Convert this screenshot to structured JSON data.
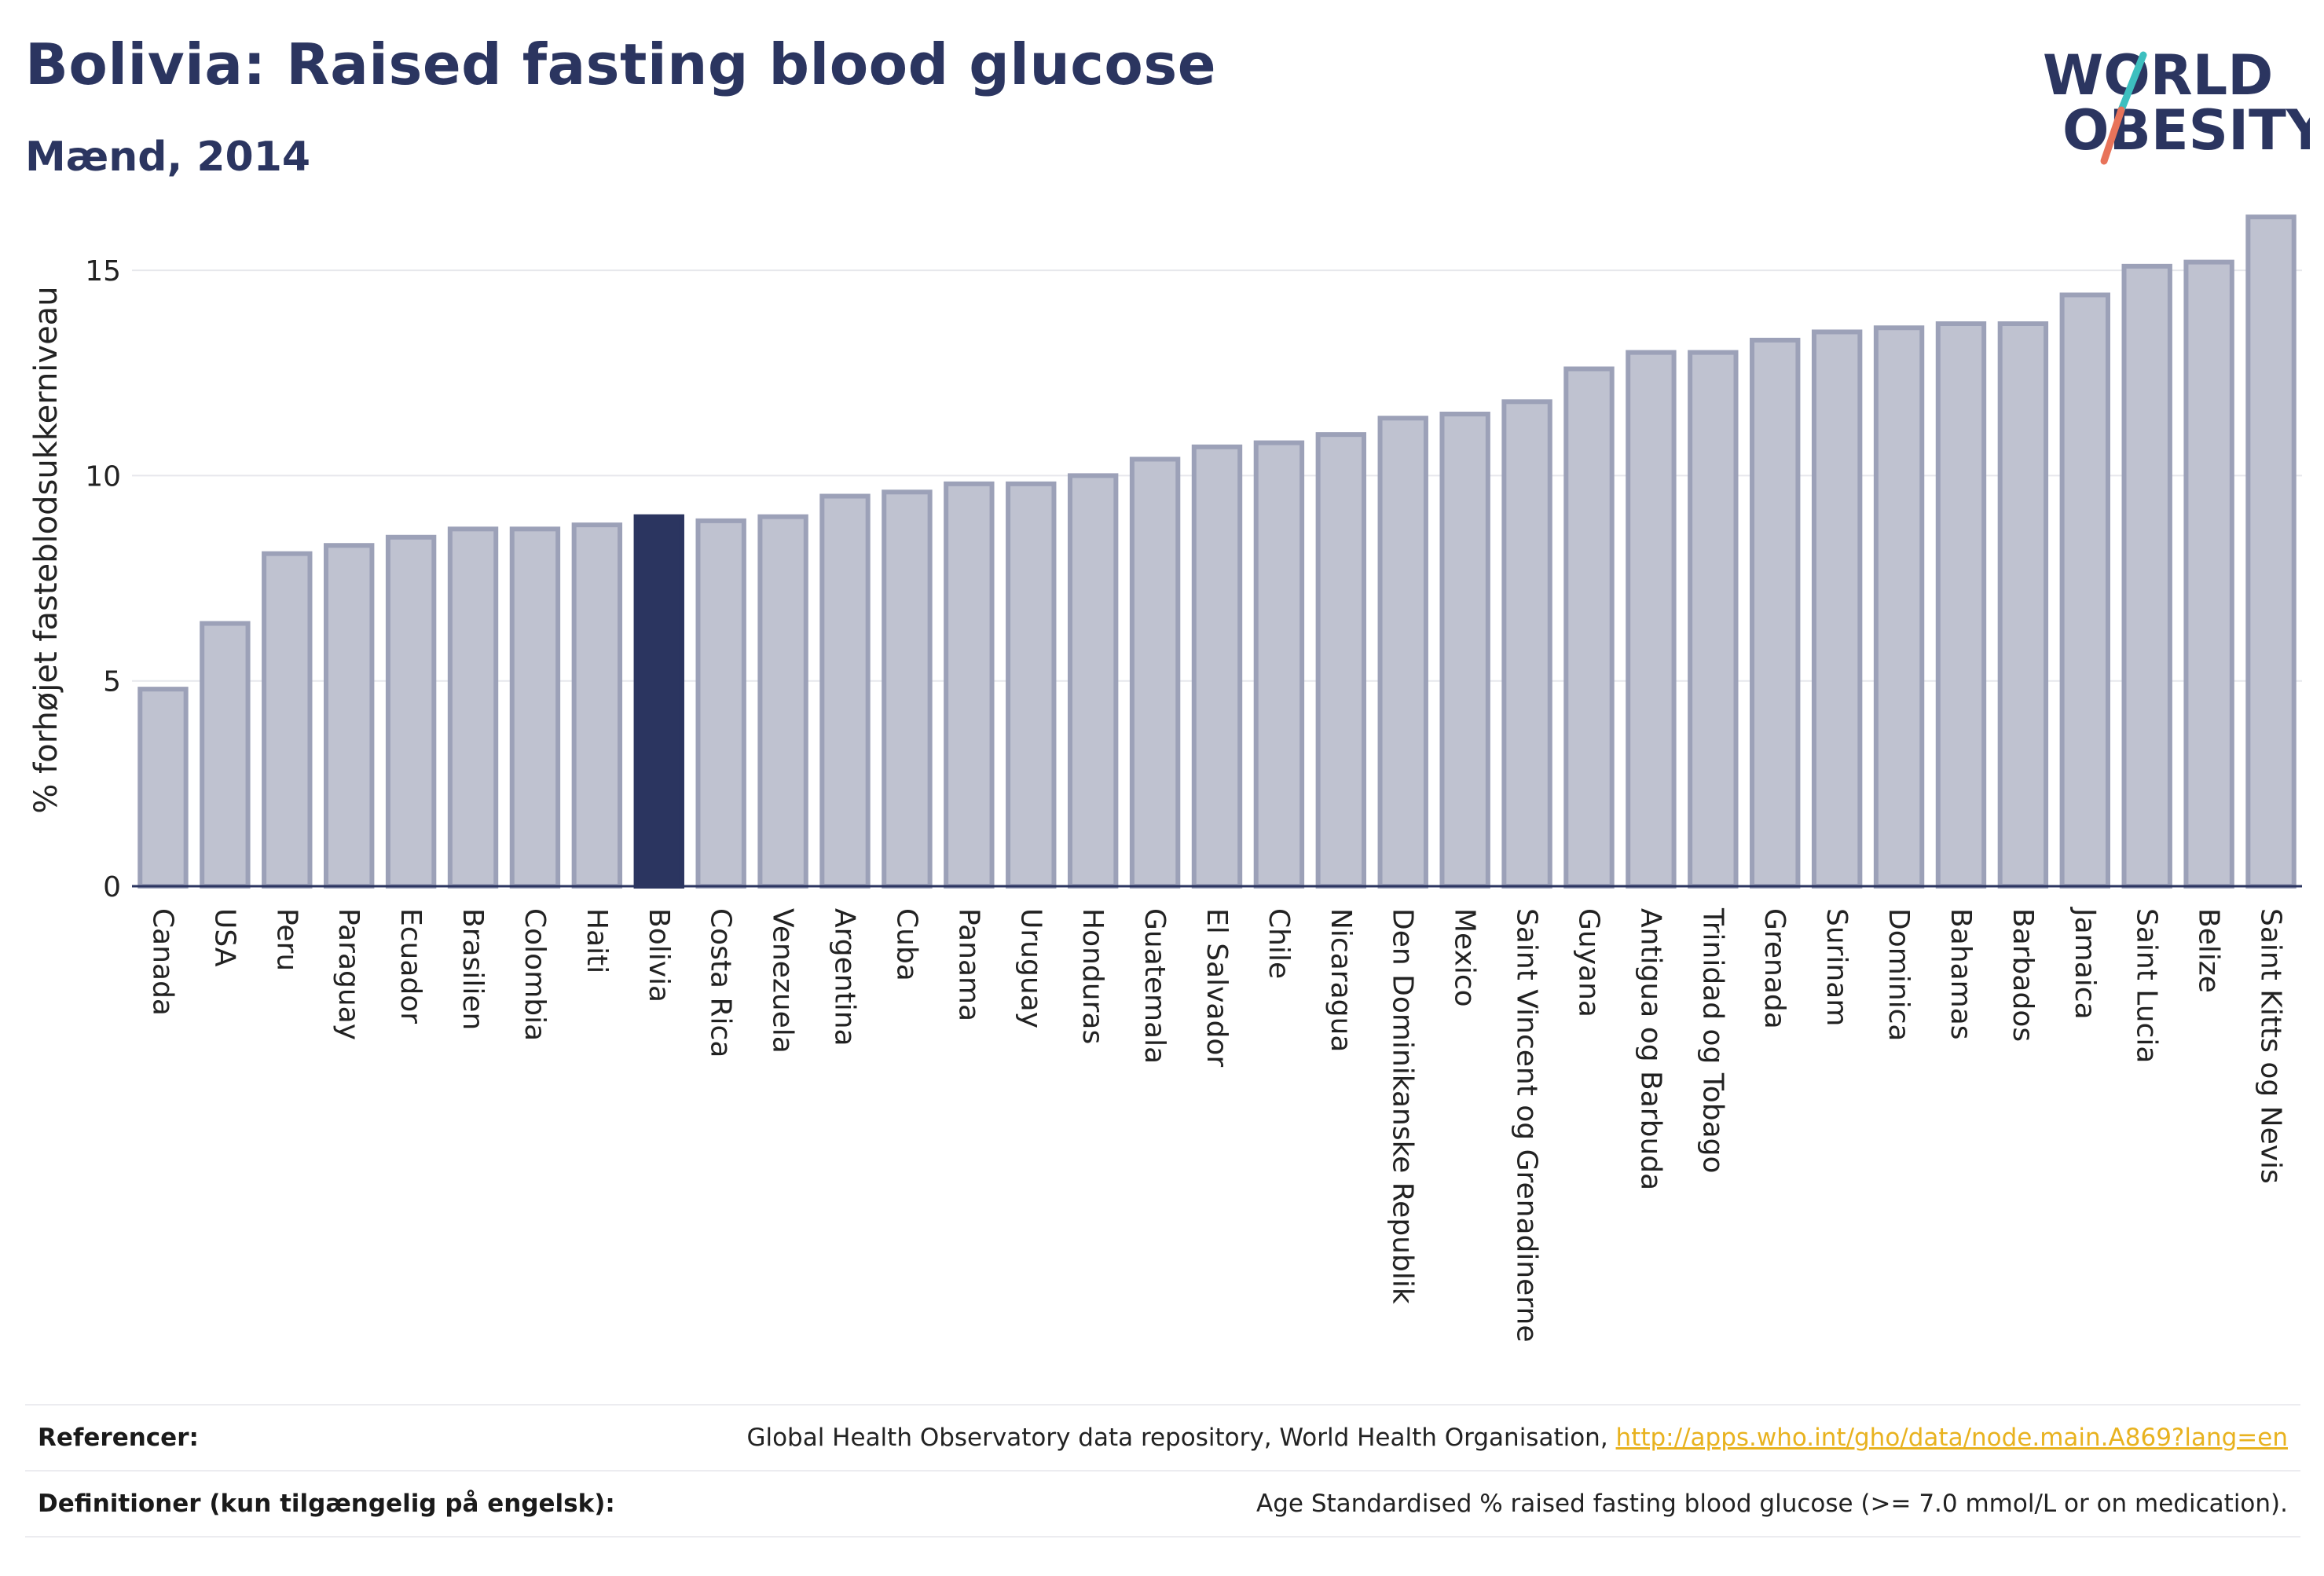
{
  "header": {
    "title": "Bolivia: Raised fasting blood glucose",
    "subtitle": "Mænd, 2014"
  },
  "logo": {
    "line1": "WORLD",
    "line2": "OBESITY",
    "colors": {
      "text": "#2b3560",
      "slash_top": "#3dbfbf",
      "slash_bottom": "#e8735a"
    }
  },
  "chart_data": {
    "type": "bar",
    "title": "Bolivia: Raised fasting blood glucose",
    "subtitle": "Mænd, 2014",
    "xlabel": "",
    "ylabel": "% forhøjet fasteblodsukkerniveau",
    "ylim": [
      0,
      16.8
    ],
    "yticks": [
      0,
      5,
      10,
      15
    ],
    "grid": true,
    "highlight": "Bolivia",
    "colors": {
      "bar_fill": "#bfc2d0",
      "bar_stroke": "#9ca1b8",
      "highlight_fill": "#2b3560",
      "axis": "#2b3560",
      "grid": "#e6e7ec"
    },
    "categories": [
      "Canada",
      "USA",
      "Peru",
      "Paraguay",
      "Ecuador",
      "Brasilien",
      "Colombia",
      "Haiti",
      "Bolivia",
      "Costa Rica",
      "Venezuela",
      "Argentina",
      "Cuba",
      "Panama",
      "Uruguay",
      "Honduras",
      "Guatemala",
      "El Salvador",
      "Chile",
      "Nicaragua",
      "Den Dominikanske Republik",
      "Mexico",
      "Saint Vincent og Grenadinerne",
      "Guyana",
      "Antigua og Barbuda",
      "Trinidad og Tobago",
      "Grenada",
      "Surinam",
      "Dominica",
      "Bahamas",
      "Barbados",
      "Jamaica",
      "Saint Lucia",
      "Belize",
      "Saint Kitts og Nevis"
    ],
    "values": [
      4.8,
      6.4,
      8.1,
      8.3,
      8.5,
      8.7,
      8.7,
      8.8,
      9.0,
      8.9,
      9.0,
      9.5,
      9.6,
      9.8,
      9.8,
      10.0,
      10.4,
      10.7,
      10.8,
      11.0,
      11.4,
      11.5,
      11.8,
      12.6,
      13.0,
      13.0,
      13.3,
      13.5,
      13.6,
      13.7,
      13.7,
      14.4,
      15.1,
      15.2,
      16.3
    ]
  },
  "references": [
    {
      "label": "Referencer:",
      "text": "Global Health Observatory data repository, World Health Organisation, ",
      "link": "http://apps.who.int/gho/data/node.main.A869?lang=en"
    },
    {
      "label": "Definitioner (kun tilgængelig på engelsk):",
      "text": "Age Standardised % raised fasting blood glucose (>= 7.0 mmol/L or on medication).",
      "link": ""
    }
  ]
}
